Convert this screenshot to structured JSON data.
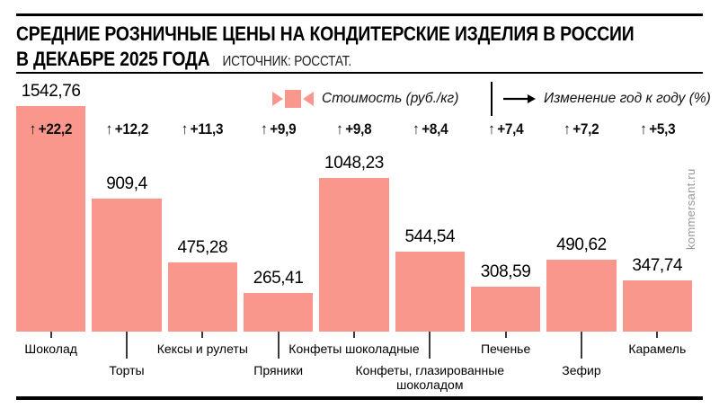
{
  "header": {
    "title_line1": "СРЕДНИЕ РОЗНИЧНЫЕ ЦЕНЫ НА КОНДИТЕРСКИЕ ИЗДЕЛИЯ В РОССИИ",
    "title_line2": "В ДЕКАБРЕ 2025 ГОДА",
    "source": "ИСТОЧНИК: РОССТАТ."
  },
  "legend": {
    "price_label": "Стоимость (руб./кг)",
    "change_label": "Изменение год к году (%)"
  },
  "watermark": "kommersant.ru",
  "colors": {
    "bar": "#FA978D",
    "rule": "#000000",
    "tick": "#3a3a3a",
    "watermark": "#98989a"
  },
  "chart_data": {
    "type": "bar",
    "title": "Средние розничные цены на кондитерские изделия в России в декабре 2025 года",
    "source": "Росстат",
    "ylabel": "Стоимость (руб./кг)",
    "secondary_metric": "Изменение год к году (%)",
    "ylim": [
      0,
      1600
    ],
    "grid": false,
    "legend_position": "top",
    "categories": [
      "Шоколад",
      "Торты",
      "Кексы и рулеты",
      "Пряники",
      "Конфеты шоколадные",
      "Конфеты, глазированные шоколадом",
      "Печенье",
      "Зефир",
      "Карамель"
    ],
    "values": [
      1542.76,
      909.4,
      475.28,
      265.41,
      1048.23,
      544.54,
      308.59,
      490.62,
      347.74
    ],
    "value_labels": [
      "1542,76",
      "909,4",
      "475,28",
      "265,41",
      "1048,23",
      "544,54",
      "308,59",
      "490,62",
      "347,74"
    ],
    "changes": [
      22.2,
      12.2,
      11.3,
      9.9,
      9.8,
      8.4,
      7.4,
      7.2,
      5.3
    ],
    "change_labels": [
      "+22,2",
      "+12,2",
      "+11,3",
      "+9,9",
      "+9,8",
      "+8,4",
      "+7,4",
      "+7,2",
      "+5,3"
    ]
  }
}
